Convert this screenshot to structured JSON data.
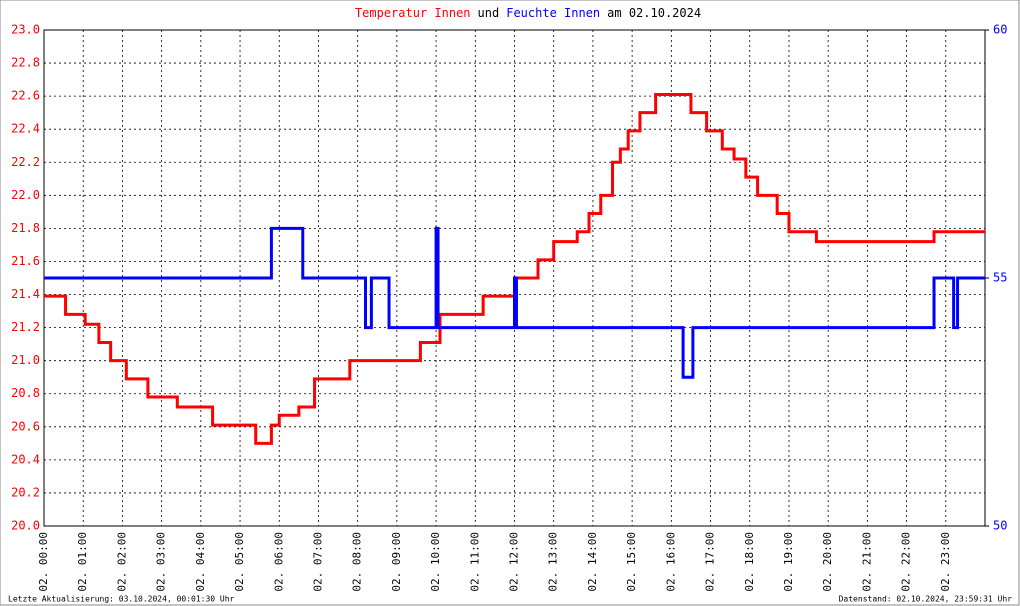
{
  "chart_data": {
    "type": "line",
    "step": true,
    "title": [
      {
        "text": "Temperatur Innen",
        "color": "#ff0000"
      },
      {
        "text": "und",
        "color": "#000000"
      },
      {
        "text": "Feuchte Innen",
        "color": "#0000ff"
      },
      {
        "text": "am 02.10.2024",
        "color": "#000000"
      }
    ],
    "xlim": [
      0,
      24
    ],
    "xticks": [
      {
        "value": 0,
        "label": "02. 00:00"
      },
      {
        "value": 1,
        "label": "02. 01:00"
      },
      {
        "value": 2,
        "label": "02. 02:00"
      },
      {
        "value": 3,
        "label": "02. 03:00"
      },
      {
        "value": 4,
        "label": "02. 04:00"
      },
      {
        "value": 5,
        "label": "02. 05:00"
      },
      {
        "value": 6,
        "label": "02. 06:00"
      },
      {
        "value": 7,
        "label": "02. 07:00"
      },
      {
        "value": 8,
        "label": "02. 08:00"
      },
      {
        "value": 9,
        "label": "02. 09:00"
      },
      {
        "value": 10,
        "label": "02. 10:00"
      },
      {
        "value": 11,
        "label": "02. 11:00"
      },
      {
        "value": 12,
        "label": "02. 12:00"
      },
      {
        "value": 13,
        "label": "02. 13:00"
      },
      {
        "value": 14,
        "label": "02. 14:00"
      },
      {
        "value": 15,
        "label": "02. 15:00"
      },
      {
        "value": 16,
        "label": "02. 16:00"
      },
      {
        "value": 17,
        "label": "02. 17:00"
      },
      {
        "value": 18,
        "label": "02. 18:00"
      },
      {
        "value": 19,
        "label": "02. 19:00"
      },
      {
        "value": 20,
        "label": "02. 20:00"
      },
      {
        "value": 21,
        "label": "02. 21:00"
      },
      {
        "value": 22,
        "label": "02. 22:00"
      },
      {
        "value": 23,
        "label": "02. 23:00"
      }
    ],
    "ylim": [
      20,
      23
    ],
    "yticks": [
      {
        "value": 20,
        "label": "20.0"
      },
      20.2,
      20.4,
      20.6,
      20.8,
      {
        "value": 21,
        "label": "21.0"
      },
      21.2,
      21.4,
      21.6,
      21.8,
      {
        "value": 22,
        "label": "22.0"
      },
      22.2,
      22.4,
      22.6,
      22.8,
      {
        "value": 23,
        "label": "23.0"
      }
    ],
    "y2lim": [
      50,
      60
    ],
    "y2ticks": [
      50,
      55,
      60
    ],
    "grid": true,
    "series": [
      {
        "name": "Temperatur Innen",
        "color": "#ff0000",
        "x": [
          0,
          0.55,
          1.05,
          1.4,
          1.7,
          2.1,
          2.65,
          3.4,
          4.3,
          5.4,
          5.8,
          6.0,
          6.5,
          6.9,
          7.8,
          9.6,
          10.1,
          11.2,
          12.0,
          12.6,
          13.0,
          13.6,
          13.9,
          14.2,
          14.5,
          14.7,
          14.9,
          15.2,
          15.6,
          16.5,
          16.9,
          17.3,
          17.6,
          17.9,
          18.2,
          18.7,
          19.0,
          19.7,
          22.7,
          24
        ],
        "values": [
          21.39,
          21.28,
          21.22,
          21.11,
          21.0,
          20.89,
          20.78,
          20.72,
          20.61,
          20.5,
          20.61,
          20.67,
          20.72,
          20.89,
          21.0,
          21.11,
          21.28,
          21.39,
          21.5,
          21.61,
          21.72,
          21.78,
          21.89,
          22.0,
          22.2,
          22.28,
          22.39,
          22.5,
          22.61,
          22.5,
          22.39,
          22.28,
          22.22,
          22.11,
          22.0,
          21.89,
          21.78,
          21.72,
          21.78,
          21.78
        ]
      },
      {
        "name": "Feuchte Innen",
        "color": "#0000ff",
        "axis": "y2",
        "x": [
          0,
          5.8,
          6.6,
          8.2,
          8.35,
          8.8,
          10.0,
          10.05,
          12.0,
          12.05,
          16.3,
          16.55,
          22.7,
          23.2,
          23.3,
          24
        ],
        "values": [
          55,
          56,
          55,
          54,
          55,
          54,
          56,
          54,
          55,
          54,
          53,
          54,
          55,
          54,
          55,
          55
        ]
      }
    ],
    "footer_left": "Letzte Aktualisierung: 03.10.2024, 00:01:30 Uhr",
    "footer_right": "Datenstand: 02.10.2024, 23:59:31 Uhr"
  }
}
